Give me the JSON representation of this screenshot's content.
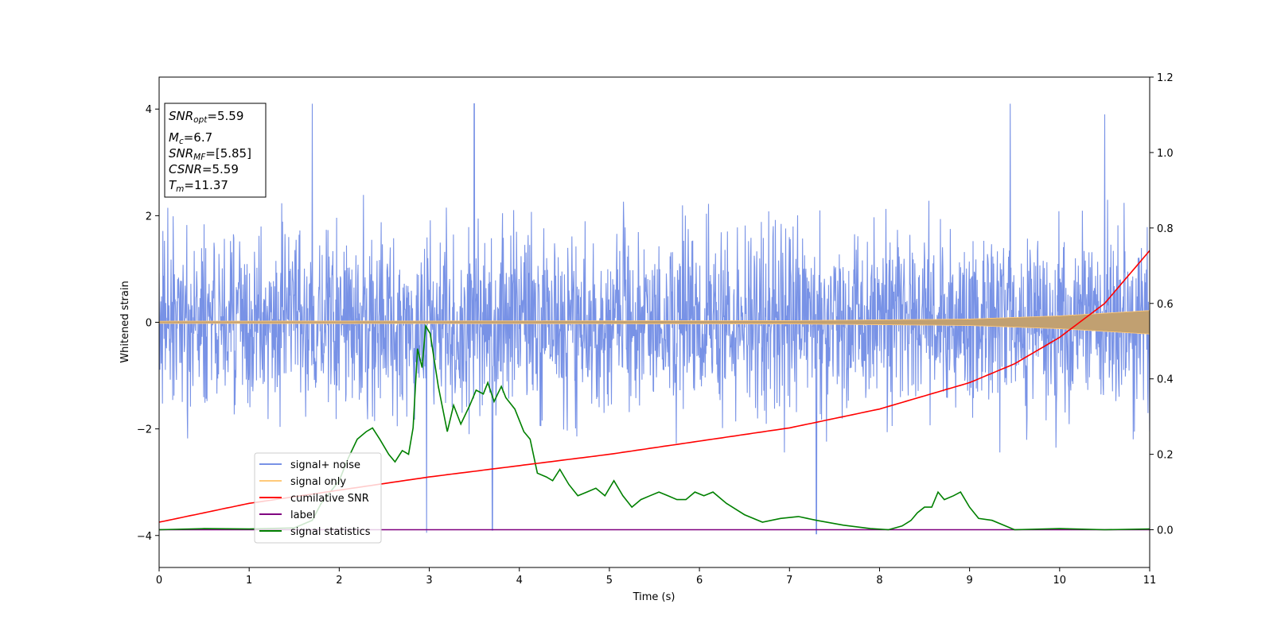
{
  "chart_data": {
    "type": "line",
    "xlabel": "Time (s)",
    "ylabel": "Whitened strain",
    "xlim": [
      0,
      11
    ],
    "ylim": [
      -4.6,
      4.6
    ],
    "y2lim": [
      -0.1,
      1.2
    ],
    "xticks": [
      0,
      1,
      2,
      3,
      4,
      5,
      6,
      7,
      8,
      9,
      10,
      11
    ],
    "yticks": [
      -4,
      -2,
      0,
      2,
      4
    ],
    "y2ticks": [
      0.0,
      0.2,
      0.4,
      0.6,
      0.8,
      1.0,
      1.2
    ],
    "xtick_labels": [
      "0",
      "1",
      "2",
      "3",
      "4",
      "5",
      "6",
      "7",
      "8",
      "9",
      "10",
      "11"
    ],
    "ytick_labels": [
      "−4",
      "−2",
      "0",
      "2",
      "4"
    ],
    "y2tick_labels": [
      "0.0",
      "0.2",
      "0.4",
      "0.6",
      "0.8",
      "1.0",
      "1.2"
    ],
    "legend_placement": "lower-left",
    "grid": false,
    "annotation": {
      "snr_opt": {
        "main": "SNR",
        "sub": "opt",
        "value": "=5.59"
      },
      "mc": {
        "main": "M",
        "sub": "c",
        "value": "=6.7"
      },
      "snr_mf": {
        "main": "SNR",
        "sub": "MF",
        "value": "=[5.85]"
      },
      "csnr": {
        "main": "CSNR",
        "value": "=5.59"
      },
      "tm": {
        "main": "T",
        "sub": "m",
        "value": "=11.37"
      }
    },
    "series": [
      {
        "name": "signal+ noise",
        "color": "#7892e6",
        "axis": "left",
        "description_points": {
          "envelope_typical": [
            -2.4,
            2.4
          ],
          "spike_peaks_x": [
            1.7,
            3.5,
            9.45,
            10.5
          ],
          "spike_peaks_y": [
            4.1,
            4.1,
            4.1,
            3.9
          ],
          "spike_troughs_x": [
            2.97,
            3.7,
            7.3
          ],
          "spike_troughs_y": [
            -3.95,
            -3.9,
            -3.97
          ]
        }
      },
      {
        "name": "signal only",
        "color": "#ffc97a",
        "axis": "left",
        "amplitude": {
          "x": [
            0,
            7,
            9,
            10,
            11
          ],
          "y": [
            0.02,
            0.03,
            0.06,
            0.12,
            0.22
          ]
        }
      },
      {
        "name": "cumilative SNR",
        "color": "#ff0000",
        "axis": "right",
        "x": [
          0,
          1,
          2,
          3,
          4,
          5,
          6,
          7,
          8,
          9,
          9.5,
          10,
          10.5,
          11
        ],
        "y": [
          0.02,
          0.07,
          0.105,
          0.14,
          0.17,
          0.2,
          0.235,
          0.27,
          0.32,
          0.39,
          0.44,
          0.51,
          0.6,
          0.74
        ]
      },
      {
        "name": "label",
        "color": "#800080",
        "axis": "right",
        "x": [
          0,
          11
        ],
        "y": [
          0.0,
          0.0
        ]
      },
      {
        "name": "signal statistics",
        "color": "#008000",
        "axis": "right",
        "x": [
          0,
          0.5,
          1,
          1.5,
          1.7,
          1.8,
          1.9,
          2.0,
          2.05,
          2.1,
          2.2,
          2.3,
          2.37,
          2.45,
          2.55,
          2.62,
          2.7,
          2.77,
          2.82,
          2.87,
          2.92,
          2.96,
          3.01,
          3.1,
          3.2,
          3.27,
          3.35,
          3.45,
          3.52,
          3.6,
          3.65,
          3.72,
          3.8,
          3.85,
          3.95,
          4.05,
          4.12,
          4.2,
          4.3,
          4.37,
          4.45,
          4.55,
          4.65,
          4.75,
          4.85,
          4.95,
          5.05,
          5.15,
          5.25,
          5.35,
          5.45,
          5.55,
          5.65,
          5.75,
          5.85,
          5.95,
          6.05,
          6.15,
          6.3,
          6.5,
          6.7,
          6.9,
          7.1,
          7.3,
          7.6,
          7.9,
          8.1,
          8.25,
          8.35,
          8.42,
          8.5,
          8.58,
          8.65,
          8.72,
          8.82,
          8.9,
          9.0,
          9.1,
          9.25,
          9.5,
          10,
          10.5,
          11
        ],
        "y": [
          0.0,
          0.003,
          0.002,
          0.005,
          0.025,
          0.07,
          0.1,
          0.13,
          0.16,
          0.19,
          0.24,
          0.26,
          0.27,
          0.24,
          0.2,
          0.18,
          0.21,
          0.2,
          0.27,
          0.48,
          0.43,
          0.54,
          0.52,
          0.38,
          0.26,
          0.33,
          0.28,
          0.33,
          0.37,
          0.36,
          0.39,
          0.34,
          0.38,
          0.35,
          0.32,
          0.26,
          0.24,
          0.15,
          0.14,
          0.13,
          0.16,
          0.12,
          0.09,
          0.1,
          0.11,
          0.09,
          0.13,
          0.09,
          0.06,
          0.08,
          0.09,
          0.1,
          0.09,
          0.08,
          0.08,
          0.1,
          0.09,
          0.1,
          0.07,
          0.04,
          0.02,
          0.03,
          0.035,
          0.025,
          0.012,
          0.003,
          0.0,
          0.01,
          0.025,
          0.045,
          0.06,
          0.06,
          0.1,
          0.08,
          0.09,
          0.1,
          0.06,
          0.03,
          0.025,
          0.0,
          0.003,
          0.0,
          0.002
        ]
      }
    ]
  }
}
